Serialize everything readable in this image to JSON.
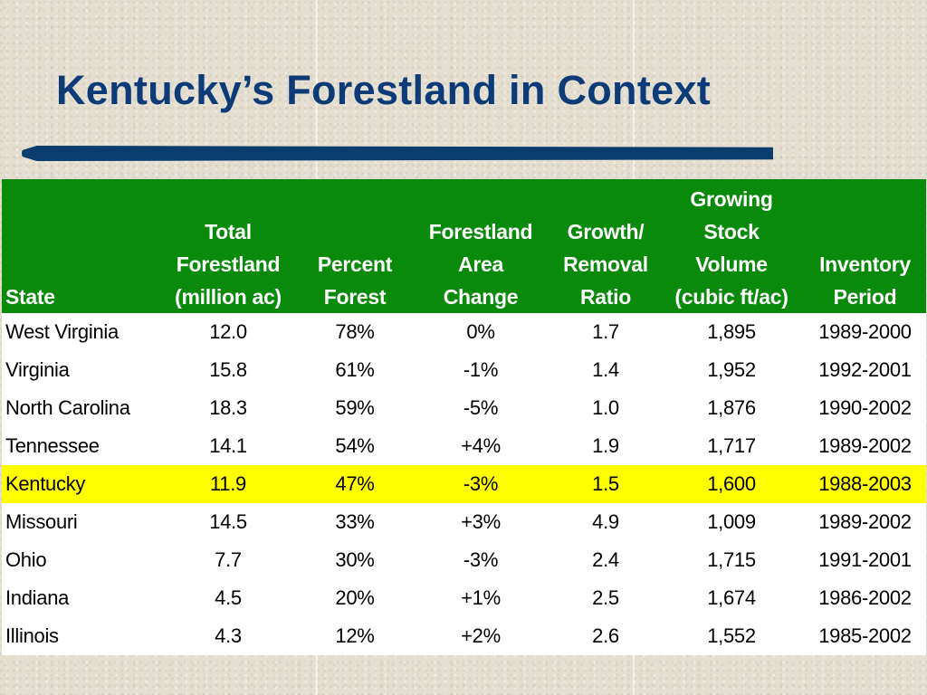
{
  "title": "Kentucky’s Forestland in Context",
  "table": {
    "headers": {
      "state": [
        "State"
      ],
      "total_forestland": [
        "Total",
        "Forestland",
        "(million ac)"
      ],
      "percent_forest": [
        "Percent",
        "Forest"
      ],
      "forestland_area_change": [
        "Forestland",
        "Area",
        "Change"
      ],
      "growth_removal_ratio": [
        "Growth/",
        "Removal",
        "Ratio"
      ],
      "growing_stock_volume": [
        "Growing",
        "Stock",
        "Volume",
        "(cubic ft/ac)"
      ],
      "inventory_period": [
        "Inventory",
        "Period"
      ]
    },
    "rows": [
      {
        "state": "West Virginia",
        "total": "12.0",
        "percent": "78%",
        "change": "0%",
        "ratio": "1.7",
        "volume": "1,895",
        "period": "1989-2000"
      },
      {
        "state": "Virginia",
        "total": "15.8",
        "percent": "61%",
        "change": "-1%",
        "ratio": "1.4",
        "volume": "1,952",
        "period": "1992-2001"
      },
      {
        "state": "North Carolina",
        "total": "18.3",
        "percent": "59%",
        "change": "-5%",
        "ratio": "1.0",
        "volume": "1,876",
        "period": "1990-2002"
      },
      {
        "state": "Tennessee",
        "total": "14.1",
        "percent": "54%",
        "change": "+4%",
        "ratio": "1.9",
        "volume": "1,717",
        "period": "1989-2002"
      },
      {
        "state": "Kentucky",
        "total": "11.9",
        "percent": "47%",
        "change": "-3%",
        "ratio": "1.5",
        "volume": "1,600",
        "period": "1988-2003",
        "highlighted": true
      },
      {
        "state": "Missouri",
        "total": "14.5",
        "percent": "33%",
        "change": "+3%",
        "ratio": "4.9",
        "volume": "1,009",
        "period": "1989-2002"
      },
      {
        "state": "Ohio",
        "total": "7.7",
        "percent": "30%",
        "change": "-3%",
        "ratio": "2.4",
        "volume": "1,715",
        "period": "1991-2001"
      },
      {
        "state": "Indiana",
        "total": "4.5",
        "percent": "20%",
        "change": "+1%",
        "ratio": "2.5",
        "volume": "1,674",
        "period": "1986-2002"
      },
      {
        "state": "Illinois",
        "total": "4.3",
        "percent": "12%",
        "change": "+2%",
        "ratio": "2.6",
        "volume": "1,552",
        "period": "1985-2002"
      }
    ]
  },
  "colors": {
    "title": "#0d3b78",
    "rule": "#0b3c6e",
    "header_bg": "#0a8a0a",
    "header_text": "#ffffff",
    "highlight_row": "#ffff00",
    "background": "#e4ded0"
  }
}
